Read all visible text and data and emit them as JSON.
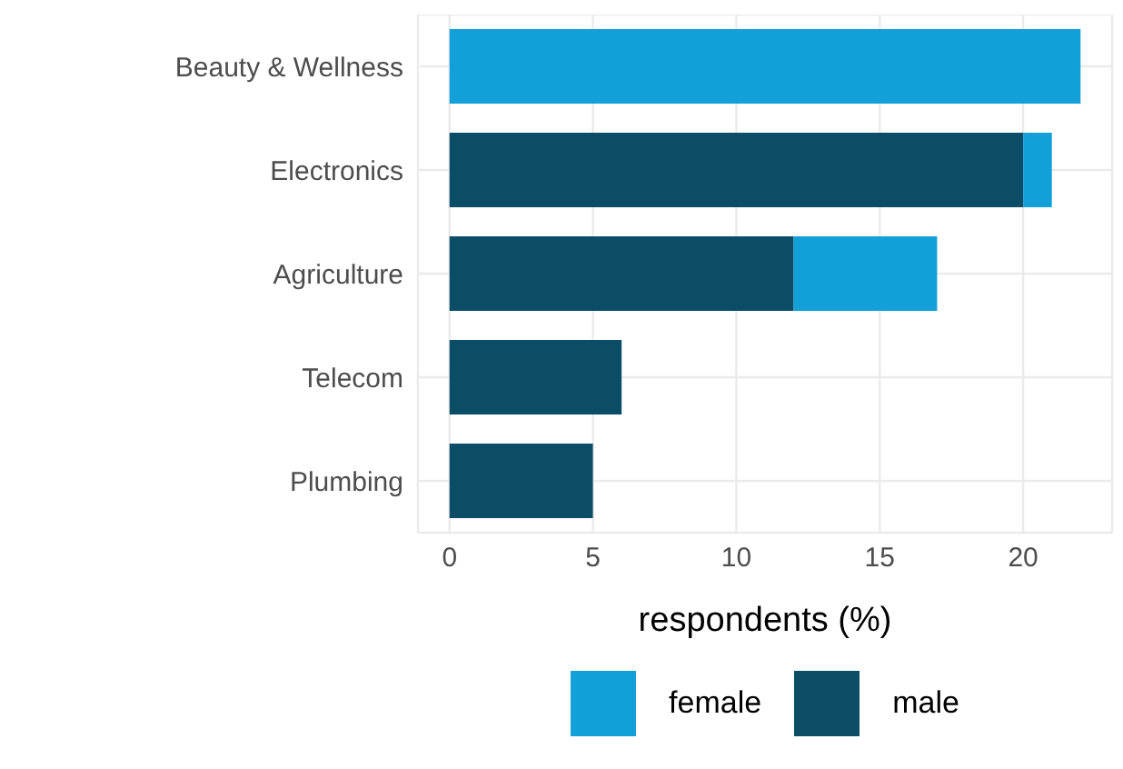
{
  "chart_data": {
    "type": "bar",
    "orientation": "horizontal",
    "stacked": true,
    "categories": [
      "Beauty & Wellness",
      "Electronics",
      "Agriculture",
      "Telecom",
      "Plumbing"
    ],
    "series": [
      {
        "name": "male",
        "color": "#0b4d66",
        "values": [
          null,
          20,
          12,
          6,
          5
        ]
      },
      {
        "name": "female",
        "color": "#13a0d8",
        "values": [
          22,
          1,
          5,
          null,
          null
        ]
      }
    ],
    "xlabel": "respondents (%)",
    "xlim": [
      -1.1,
      23.1
    ],
    "xticks": [
      0,
      5,
      10,
      15,
      20
    ],
    "grid": true,
    "legend": "bottom"
  }
}
